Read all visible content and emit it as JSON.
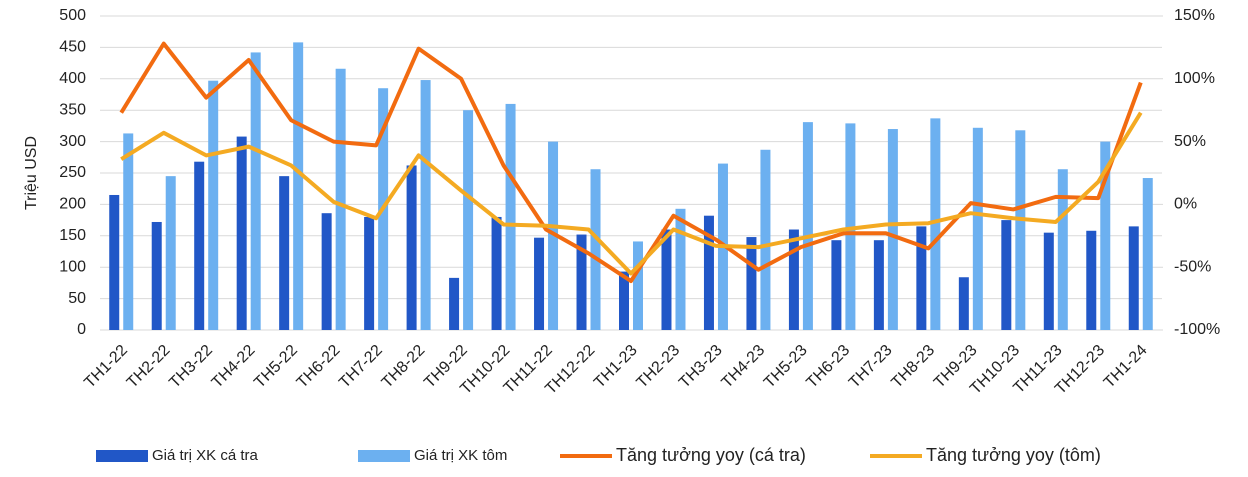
{
  "chart_data": {
    "type": "bar",
    "ylabel": "Triệu USD",
    "categories": [
      "TH1-22",
      "TH2-22",
      "TH3-22",
      "TH4-22",
      "TH5-22",
      "TH6-22",
      "TH7-22",
      "TH8-22",
      "TH9-22",
      "TH10-22",
      "TH11-22",
      "TH12-22",
      "TH1-23",
      "TH2-23",
      "TH3-23",
      "TH4-23",
      "TH5-23",
      "TH6-23",
      "TH7-23",
      "TH8-23",
      "TH9-23",
      "TH10-23",
      "TH11-23",
      "TH12-23",
      "TH1-24"
    ],
    "series": [
      {
        "name": "Giá trị XK cá tra",
        "type": "bar",
        "color": "#2157c7",
        "values": [
          215,
          172,
          268,
          308,
          245,
          186,
          180,
          262,
          83,
          180,
          147,
          152,
          93,
          160,
          182,
          148,
          160,
          143,
          143,
          165,
          84,
          175,
          155,
          158,
          165
        ]
      },
      {
        "name": "Giá trị XK tôm",
        "type": "bar",
        "color": "#6cb0f0",
        "values": [
          313,
          245,
          397,
          442,
          458,
          416,
          385,
          398,
          350,
          360,
          300,
          256,
          141,
          193,
          265,
          287,
          331,
          329,
          320,
          337,
          322,
          318,
          256,
          300,
          242
        ]
      },
      {
        "name": "Tăng tưởng yoy (cá tra)",
        "type": "line",
        "axis": "y2",
        "color": "#f26b10",
        "values": [
          73,
          128,
          85,
          115,
          67,
          50,
          47,
          124,
          100,
          31,
          -20,
          -39,
          -61,
          -9,
          -28,
          -52,
          -34,
          -23,
          -23,
          -35,
          1,
          -4,
          6,
          5,
          97
        ]
      },
      {
        "name": "Tăng tưởng yoy (tôm)",
        "type": "line",
        "axis": "y2",
        "color": "#f4aa22",
        "values": [
          36,
          57,
          39,
          46,
          31,
          2,
          -11,
          39,
          11,
          -16,
          -17,
          -20,
          -55,
          -20,
          -33,
          -34,
          -27,
          -20,
          -16,
          -15,
          -7,
          -11,
          -14,
          18,
          73
        ]
      }
    ],
    "ylim": [
      0,
      500
    ],
    "yticks": [
      0,
      50,
      100,
      150,
      200,
      250,
      300,
      350,
      400,
      450,
      500
    ],
    "y2lim": [
      -100,
      150
    ],
    "y2ticks": [
      {
        "value": -100,
        "label": "-100%"
      },
      {
        "value": -50,
        "label": "-50%"
      },
      {
        "value": 0,
        "label": "0%"
      },
      {
        "value": 50,
        "label": "50%"
      },
      {
        "value": 100,
        "label": "100%"
      },
      {
        "value": 150,
        "label": "150%"
      }
    ],
    "grid": true
  }
}
